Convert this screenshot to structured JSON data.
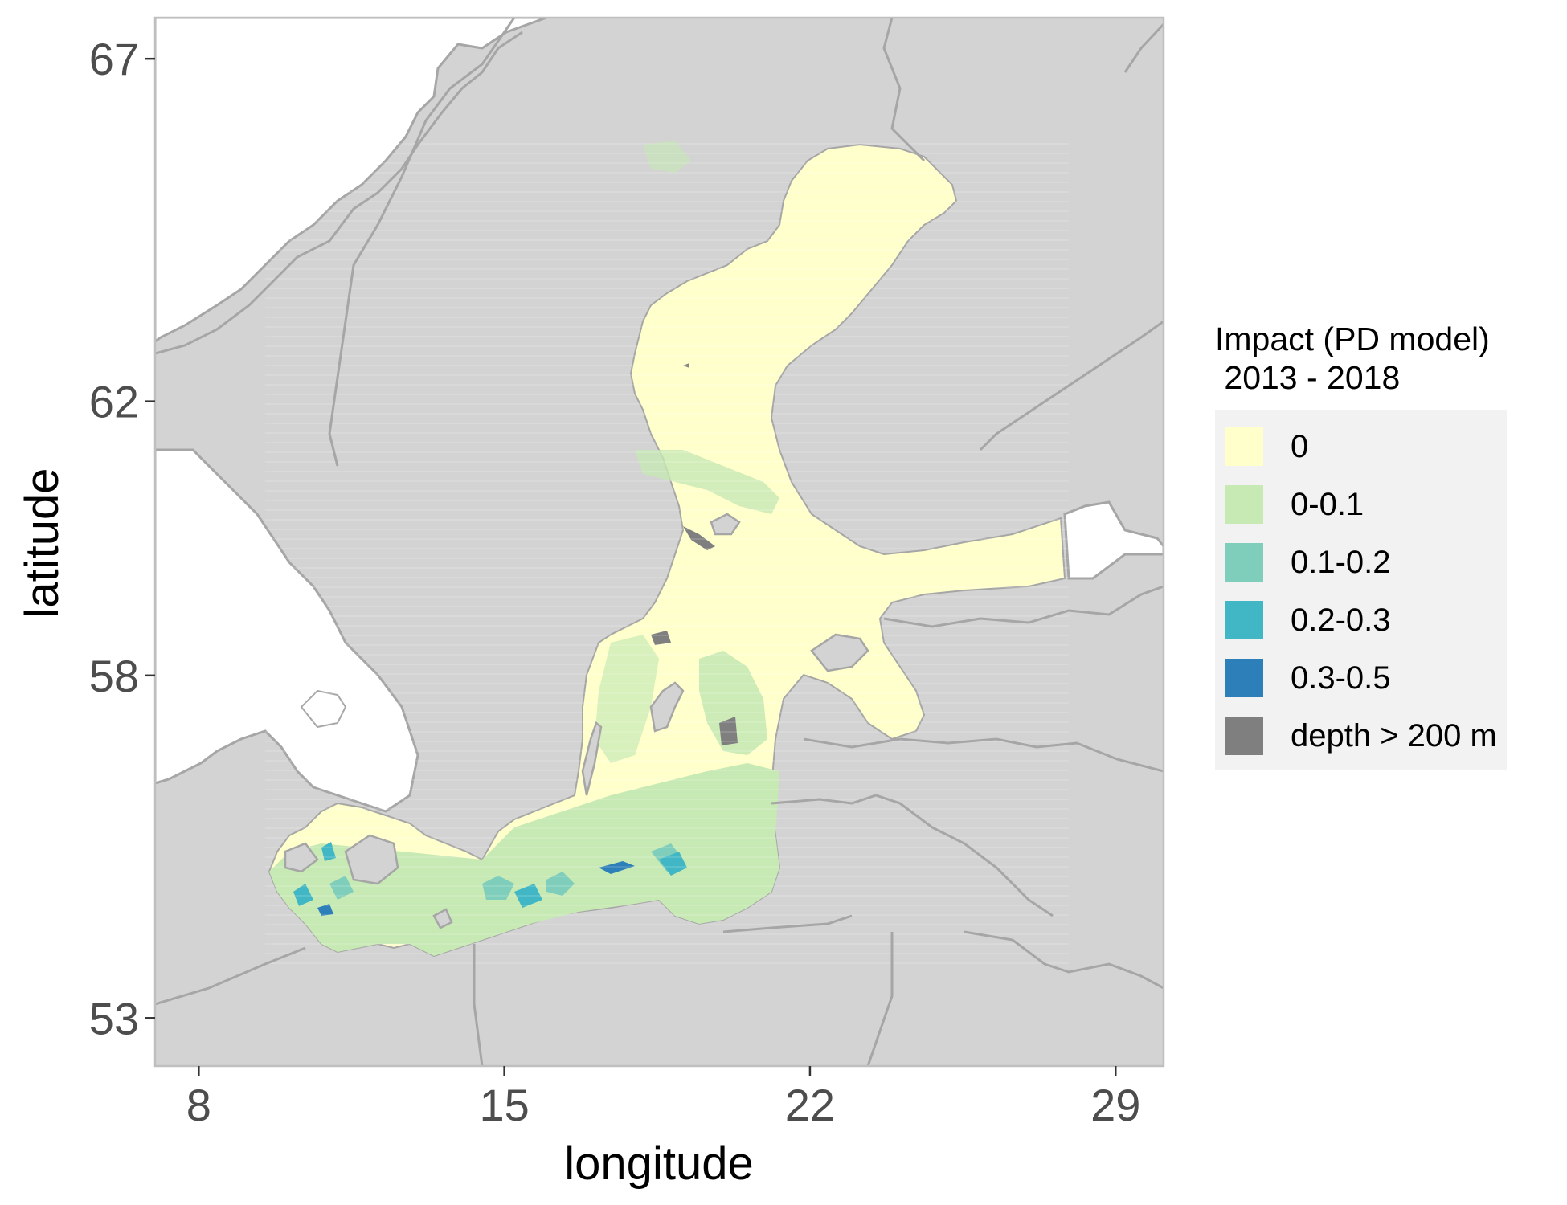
{
  "map": {
    "xlabel": "longitude",
    "ylabel": "latitude",
    "x_ticks": [
      "8",
      "15",
      "22",
      "29"
    ],
    "y_ticks": [
      "67",
      "62",
      "58",
      "53"
    ],
    "x_tick_values": [
      8,
      15,
      22,
      29
    ],
    "y_tick_values": [
      67,
      62,
      58,
      53
    ],
    "xlim": [
      7,
      30.1
    ],
    "ylim": [
      52.3,
      67.6
    ],
    "colors": {
      "land": "#d3d3d3",
      "border": "#a6a6a6",
      "sea_outside": "#ffffff",
      "panel_border": "#bfbfbf"
    }
  },
  "legend": {
    "title": "Impact (PD model)\n 2013 - 2018",
    "items": [
      {
        "label": "0",
        "color": "#ffffcc"
      },
      {
        "label": "0-0.1",
        "color": "#c7e9b4"
      },
      {
        "label": "0.1-0.2",
        "color": "#7fcdbb"
      },
      {
        "label": "0.2-0.3",
        "color": "#41b6c4"
      },
      {
        "label": "0.3-0.5",
        "color": "#2c7fb8"
      },
      {
        "label": "depth > 200 m",
        "color": "#7f7f7f"
      }
    ]
  }
}
